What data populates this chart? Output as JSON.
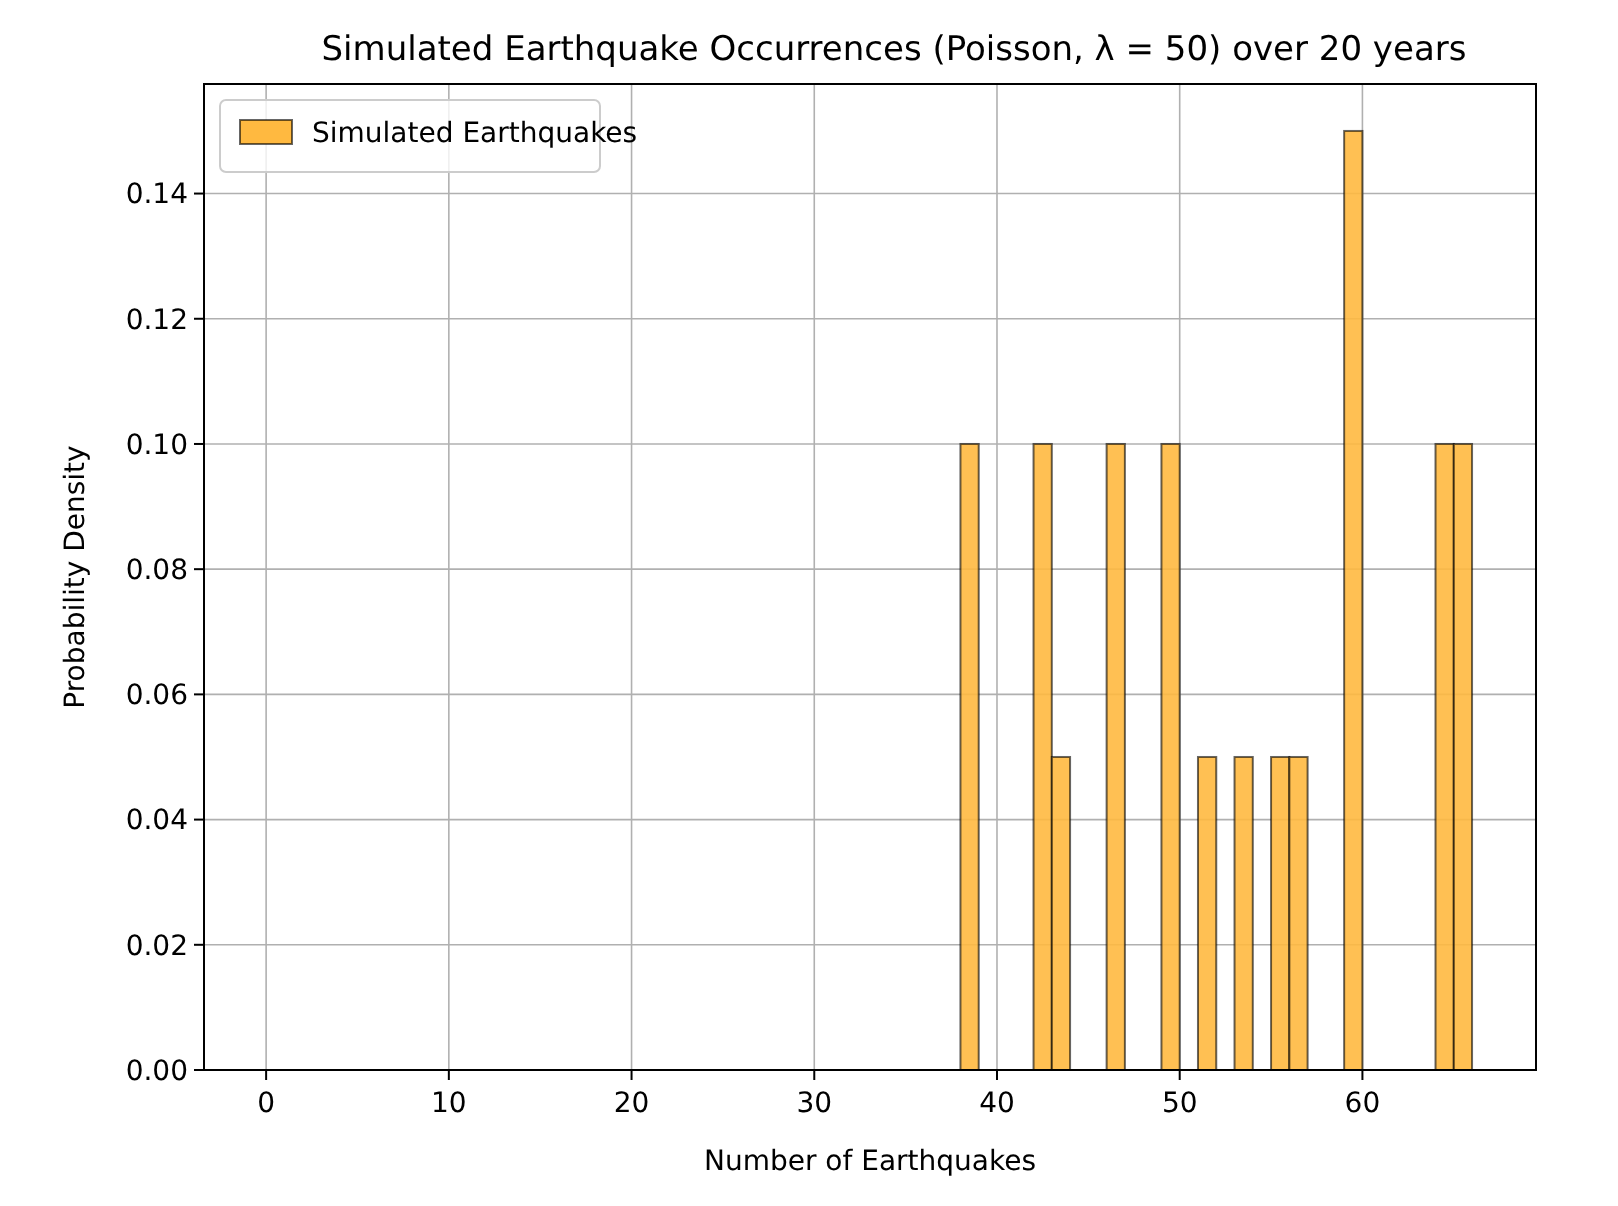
{
  "chart_data": {
    "type": "histogram",
    "title": "Simulated Earthquake Occurrences (Poisson, λ = 50) over 20 years",
    "xlabel": "Number of Earthquakes",
    "ylabel": "Probability Density",
    "bins": [
      38,
      39,
      40,
      41,
      42,
      43,
      44,
      45,
      46,
      47,
      48,
      49,
      50,
      51,
      52,
      53,
      54,
      55,
      56,
      57,
      58,
      59,
      60,
      61,
      62,
      63,
      64,
      65,
      66
    ],
    "series": [
      {
        "name": "Simulated Earthquakes",
        "color": "#ffb940",
        "values": [
          0.1,
          0,
          0,
          0,
          0.1,
          0.05,
          0,
          0,
          0.1,
          0,
          0,
          0.1,
          0,
          0.05,
          0,
          0.05,
          0,
          0.05,
          0.05,
          0,
          0,
          0.15,
          0,
          0,
          0,
          0,
          0.1,
          0.1
        ]
      }
    ],
    "xlim": [
      -3.4,
      69.5
    ],
    "xticks": [
      0,
      10,
      20,
      30,
      40,
      50,
      60
    ],
    "ylim": [
      0,
      0.1575
    ],
    "yticks": [
      {
        "value": 0,
        "label": "0.00"
      },
      {
        "value": 0.02,
        "label": "0.02"
      },
      {
        "value": 0.04,
        "label": "0.04"
      },
      {
        "value": 0.06,
        "label": "0.06"
      },
      {
        "value": 0.08,
        "label": "0.08"
      },
      {
        "value": 0.1,
        "label": "0.10"
      },
      {
        "value": 0.12,
        "label": "0.12"
      },
      {
        "value": 0.14,
        "label": "0.14"
      }
    ],
    "grid": true,
    "legend": "top left"
  }
}
